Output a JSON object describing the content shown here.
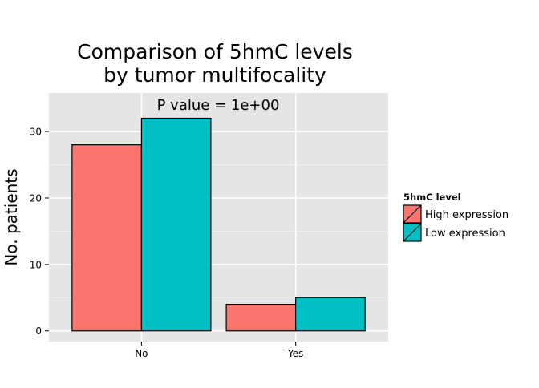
{
  "chart_data": {
    "type": "bar",
    "title_lines": [
      "Comparison of 5hmC levels",
      "by tumor multifocality"
    ],
    "annotation": "P value = 1e+00",
    "categories": [
      "No",
      "Yes"
    ],
    "series": [
      {
        "name": "High expression",
        "color": "#F8766D",
        "values": [
          28,
          4
        ]
      },
      {
        "name": "Low expression",
        "color": "#00BFC4",
        "values": [
          32,
          5
        ]
      }
    ],
    "xlabel": "",
    "ylabel": "No. patients",
    "ylim": [
      -1.6,
      35.8
    ],
    "yticks": [
      0,
      10,
      20,
      30
    ],
    "grid": true,
    "legend": {
      "title": "5hmC level",
      "position": "right"
    },
    "colors": {
      "panel_background": "#E5E5E5",
      "grid_major": "#FFFFFF",
      "grid_minor": "#F2F2F2",
      "bar_outline": "#000000"
    }
  }
}
